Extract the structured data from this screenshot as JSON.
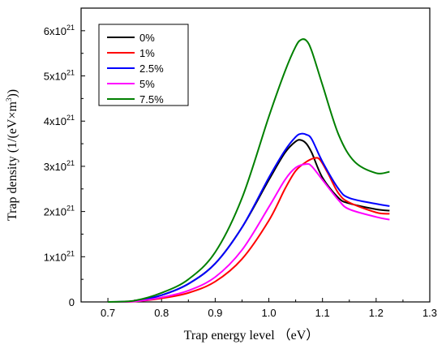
{
  "chart_data": {
    "type": "line",
    "xlabel": "Trap energy level （eV）",
    "ylabel": "Trap density (1/(eV×m³))",
    "ylabel_parts": {
      "before": "Trap density (1/(eV×m",
      "sup": "3",
      "after": "))"
    },
    "xlim": [
      0.65,
      1.3
    ],
    "ylim": [
      0,
      6.5
    ],
    "x_ticks": [
      0.7,
      0.8,
      0.9,
      1.0,
      1.1,
      1.2,
      1.3
    ],
    "x_tick_labels": [
      "0.7",
      "0.8",
      "0.9",
      "1.0",
      "1.1",
      "1.2",
      "1.3"
    ],
    "y_ticks": [
      0,
      1,
      2,
      3,
      4,
      5,
      6
    ],
    "y_tick_labels": [
      "0",
      "1x10",
      "2x10",
      "3x10",
      "4x10",
      "5x10",
      "6x10"
    ],
    "y_tick_exponent": "21",
    "y_unit_note": "values in units of 10^21",
    "grid": false,
    "legend_position": "top-left",
    "series": [
      {
        "name": "0%",
        "color": "#000000",
        "x": [
          0.7,
          0.75,
          0.8,
          0.85,
          0.9,
          0.95,
          1.0,
          1.03,
          1.05,
          1.06,
          1.07,
          1.08,
          1.1,
          1.13,
          1.15,
          1.2,
          1.225
        ],
        "y": [
          0.0,
          0.02,
          0.15,
          0.4,
          0.85,
          1.65,
          2.7,
          3.3,
          3.55,
          3.58,
          3.5,
          3.3,
          2.75,
          2.3,
          2.18,
          2.05,
          2.02
        ]
      },
      {
        "name": "1%",
        "color": "#ff0000",
        "x": [
          0.7,
          0.75,
          0.8,
          0.85,
          0.9,
          0.95,
          1.0,
          1.03,
          1.05,
          1.07,
          1.085,
          1.095,
          1.11,
          1.13,
          1.15,
          1.2,
          1.225
        ],
        "y": [
          0.0,
          0.01,
          0.08,
          0.2,
          0.45,
          0.95,
          1.8,
          2.5,
          2.9,
          3.1,
          3.18,
          3.15,
          2.85,
          2.4,
          2.2,
          1.98,
          1.95
        ]
      },
      {
        "name": "2.5%",
        "color": "#0000ff",
        "x": [
          0.7,
          0.75,
          0.8,
          0.85,
          0.9,
          0.95,
          1.0,
          1.03,
          1.05,
          1.06,
          1.07,
          1.08,
          1.1,
          1.13,
          1.15,
          1.2,
          1.225
        ],
        "y": [
          0.0,
          0.02,
          0.15,
          0.4,
          0.85,
          1.65,
          2.75,
          3.35,
          3.65,
          3.72,
          3.7,
          3.6,
          3.1,
          2.5,
          2.3,
          2.17,
          2.12
        ]
      },
      {
        "name": "5%",
        "color": "#ff00ff",
        "x": [
          0.7,
          0.75,
          0.8,
          0.85,
          0.9,
          0.95,
          1.0,
          1.03,
          1.05,
          1.07,
          1.08,
          1.1,
          1.13,
          1.15,
          1.2,
          1.225
        ],
        "y": [
          0.0,
          0.01,
          0.1,
          0.25,
          0.55,
          1.15,
          2.1,
          2.7,
          2.97,
          3.05,
          3.0,
          2.7,
          2.25,
          2.05,
          1.88,
          1.82
        ]
      },
      {
        "name": "7.5%",
        "color": "#008000",
        "x": [
          0.7,
          0.75,
          0.8,
          0.85,
          0.9,
          0.95,
          1.0,
          1.03,
          1.05,
          1.06,
          1.07,
          1.08,
          1.1,
          1.13,
          1.16,
          1.2,
          1.225
        ],
        "y": [
          0.0,
          0.03,
          0.2,
          0.5,
          1.1,
          2.3,
          4.1,
          5.1,
          5.65,
          5.8,
          5.78,
          5.55,
          4.8,
          3.7,
          3.1,
          2.85,
          2.88
        ]
      }
    ]
  }
}
